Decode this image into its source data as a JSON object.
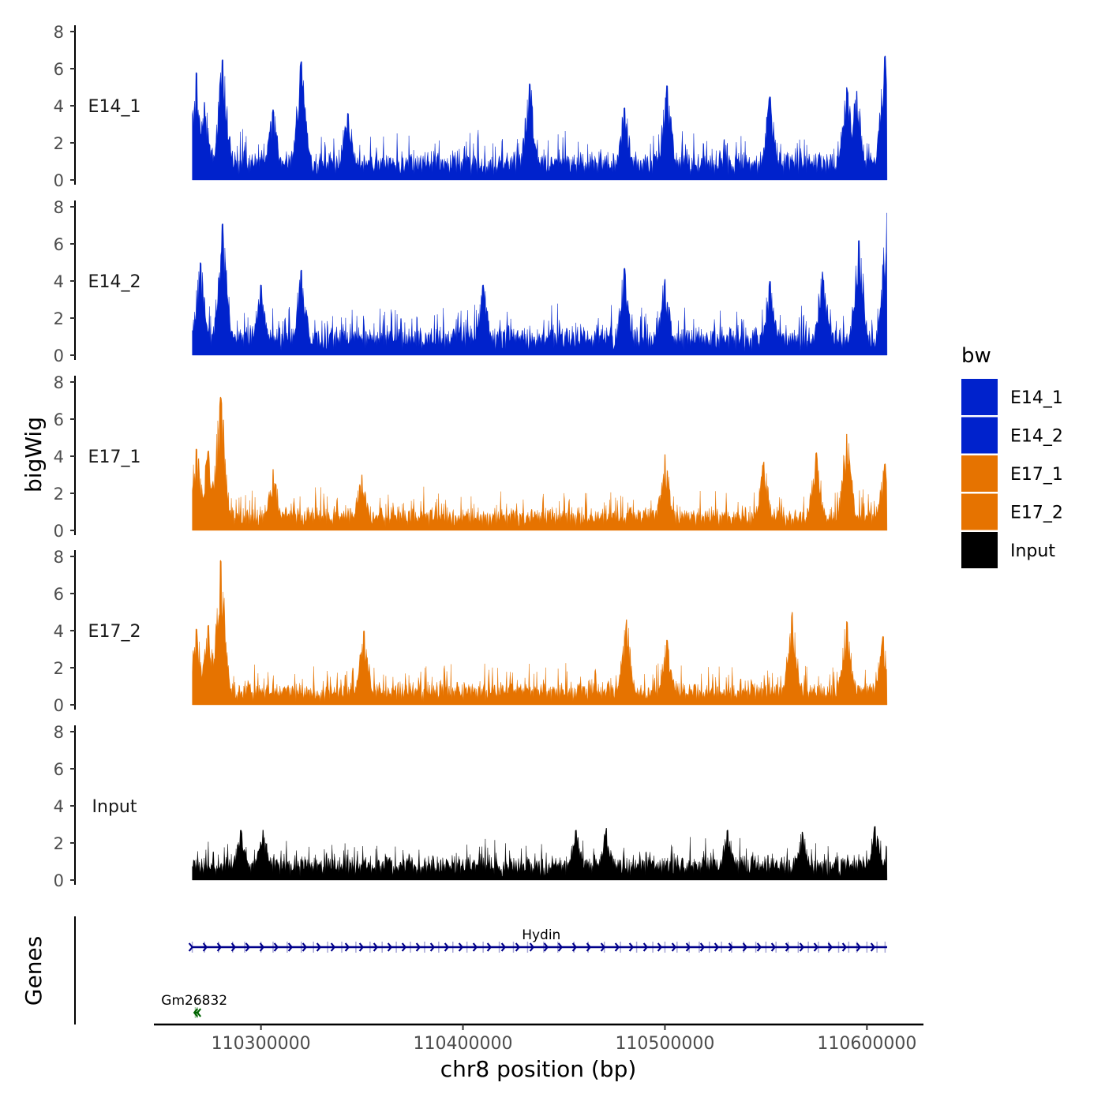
{
  "chart_data": {
    "type": "area",
    "title": "",
    "xlabel": "chr8 position (bp)",
    "ylabel": "bigWig",
    "xlim": [
      110247000,
      110628000
    ],
    "ylim": [
      0,
      8
    ],
    "data_range": [
      110266000,
      110610000
    ],
    "x_ticks": [
      110300000,
      110400000,
      110500000,
      110600000
    ],
    "x_tick_labels": [
      "110300000",
      "110400000",
      "110500000",
      "110600000"
    ],
    "y_ticks": [
      0,
      2,
      4,
      6,
      8
    ],
    "y_tick_labels": [
      "0",
      "2",
      "4",
      "6",
      "8"
    ],
    "legend": {
      "title": "bw",
      "position": "right",
      "entries": [
        {
          "label": "E14_1",
          "color": "#0022CC"
        },
        {
          "label": "E14_2",
          "color": "#0022CC"
        },
        {
          "label": "E17_1",
          "color": "#E67300"
        },
        {
          "label": "E17_2",
          "color": "#E67300"
        },
        {
          "label": "Input",
          "color": "#000000"
        }
      ]
    },
    "series": [
      {
        "name": "E14_1",
        "color": "#0022CC",
        "base": 0.9,
        "noise": 1.1,
        "peaks": [
          {
            "x": 110268000,
            "y": 5.8
          },
          {
            "x": 110272000,
            "y": 4.2
          },
          {
            "x": 110281000,
            "y": 6.5
          },
          {
            "x": 110306000,
            "y": 3.8
          },
          {
            "x": 110320000,
            "y": 6.4
          },
          {
            "x": 110343000,
            "y": 3.6
          },
          {
            "x": 110433000,
            "y": 5.2
          },
          {
            "x": 110480000,
            "y": 3.9
          },
          {
            "x": 110501000,
            "y": 5.1
          },
          {
            "x": 110552000,
            "y": 4.5
          },
          {
            "x": 110590000,
            "y": 5.0
          },
          {
            "x": 110595000,
            "y": 4.8
          },
          {
            "x": 110609000,
            "y": 6.7
          }
        ]
      },
      {
        "name": "E14_2",
        "color": "#0022CC",
        "base": 0.9,
        "noise": 1.2,
        "peaks": [
          {
            "x": 110270000,
            "y": 5.0
          },
          {
            "x": 110281000,
            "y": 7.1
          },
          {
            "x": 110300000,
            "y": 3.8
          },
          {
            "x": 110320000,
            "y": 4.6
          },
          {
            "x": 110410000,
            "y": 3.8
          },
          {
            "x": 110480000,
            "y": 4.7
          },
          {
            "x": 110500000,
            "y": 4.1
          },
          {
            "x": 110552000,
            "y": 4.0
          },
          {
            "x": 110578000,
            "y": 4.5
          },
          {
            "x": 110596000,
            "y": 6.2
          },
          {
            "x": 110610000,
            "y": 7.7
          }
        ]
      },
      {
        "name": "E17_1",
        "color": "#E67300",
        "base": 0.7,
        "noise": 1.0,
        "peaks": [
          {
            "x": 110268000,
            "y": 4.4
          },
          {
            "x": 110274000,
            "y": 4.3
          },
          {
            "x": 110280000,
            "y": 7.2
          },
          {
            "x": 110306000,
            "y": 3.3
          },
          {
            "x": 110350000,
            "y": 3.0
          },
          {
            "x": 110500000,
            "y": 4.1
          },
          {
            "x": 110549000,
            "y": 3.7
          },
          {
            "x": 110575000,
            "y": 4.2
          },
          {
            "x": 110590000,
            "y": 5.2
          },
          {
            "x": 110609000,
            "y": 3.6
          }
        ]
      },
      {
        "name": "E17_2",
        "color": "#E67300",
        "base": 0.7,
        "noise": 1.0,
        "peaks": [
          {
            "x": 110268000,
            "y": 4.1
          },
          {
            "x": 110274000,
            "y": 4.3
          },
          {
            "x": 110280000,
            "y": 7.8
          },
          {
            "x": 110351000,
            "y": 4.0
          },
          {
            "x": 110481000,
            "y": 4.6
          },
          {
            "x": 110501000,
            "y": 3.5
          },
          {
            "x": 110563000,
            "y": 5.0
          },
          {
            "x": 110590000,
            "y": 4.5
          },
          {
            "x": 110608000,
            "y": 3.7
          }
        ]
      },
      {
        "name": "Input",
        "color": "#000000",
        "base": 0.8,
        "noise": 0.9,
        "peaks": [
          {
            "x": 110290000,
            "y": 2.7
          },
          {
            "x": 110301000,
            "y": 2.7
          },
          {
            "x": 110456000,
            "y": 2.7
          },
          {
            "x": 110471000,
            "y": 2.8
          },
          {
            "x": 110531000,
            "y": 2.7
          },
          {
            "x": 110568000,
            "y": 2.6
          },
          {
            "x": 110604000,
            "y": 2.9
          }
        ]
      }
    ],
    "genes_track": {
      "label": "Genes",
      "genes": [
        {
          "name": "Hydin",
          "strand": "+",
          "start": 110266000,
          "end": 110610000,
          "color": "#00008B",
          "exons": [
            110266000,
            110272000,
            110279000,
            110286000,
            110292000,
            110300000,
            110306000,
            110313000,
            110320000,
            110326000,
            110333000,
            110340000,
            110347000,
            110354000,
            110360000,
            110367000,
            110374000,
            110381000,
            110388000,
            110395000,
            110402000,
            110410000,
            110418000,
            110425000,
            110432000,
            110440000,
            110447000,
            110455000,
            110462000,
            110470000,
            110478000,
            110486000,
            110494000,
            110500000,
            110506000,
            110512000,
            110517000,
            110522000,
            110528000,
            110533000,
            110539000,
            110545000,
            110550000,
            110555000,
            110561000,
            110566000,
            110571000,
            110576000,
            110581000,
            110586000,
            110591000,
            110595000,
            110600000,
            110605000,
            110609000
          ]
        },
        {
          "name": "Gm26832",
          "strand": "-",
          "start": 110267000,
          "end": 110269000,
          "color": "#006400",
          "exons": [
            110267500,
            110268500
          ]
        }
      ]
    }
  }
}
